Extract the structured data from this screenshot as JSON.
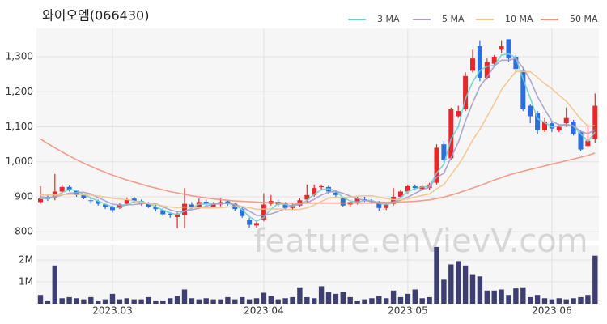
{
  "chart_data": {
    "type": "candlestick",
    "title": "와이오엠(066430)",
    "watermark": "feature.enVievV.com",
    "categories": [
      null,
      null,
      null,
      null,
      null,
      null,
      null,
      null,
      null,
      null,
      "2023.03",
      null,
      null,
      null,
      null,
      null,
      null,
      null,
      null,
      null,
      null,
      null,
      null,
      null,
      null,
      null,
      null,
      null,
      null,
      null,
      null,
      "2023.04",
      null,
      null,
      null,
      null,
      null,
      null,
      null,
      null,
      null,
      null,
      null,
      null,
      null,
      null,
      null,
      null,
      null,
      null,
      null,
      "2023.05",
      null,
      null,
      null,
      null,
      null,
      null,
      null,
      null,
      null,
      null,
      null,
      null,
      null,
      null,
      null,
      null,
      null,
      null,
      null,
      "2023.06",
      null,
      null,
      null,
      null,
      null,
      null
    ],
    "open": [
      885,
      900,
      898,
      915,
      928,
      918,
      905,
      890,
      888,
      878,
      872,
      868,
      880,
      895,
      888,
      880,
      872,
      862,
      852,
      842,
      848,
      878,
      870,
      886,
      872,
      878,
      887,
      880,
      865,
      835,
      818,
      835,
      880,
      886,
      880,
      868,
      875,
      892,
      905,
      928,
      928,
      912,
      895,
      878,
      883,
      893,
      888,
      882,
      868,
      880,
      900,
      915,
      930,
      922,
      925,
      940,
      1050,
      1010,
      1130,
      1150,
      1260,
      1330,
      1240,
      1280,
      1320,
      1350,
      1300,
      1260,
      1160,
      1140,
      1090,
      1110,
      1090,
      1110,
      1115,
      1085,
      1045,
      1065
    ],
    "high": [
      930,
      905,
      965,
      935,
      932,
      920,
      908,
      895,
      892,
      880,
      875,
      882,
      898,
      900,
      892,
      885,
      878,
      868,
      856,
      855,
      925,
      885,
      895,
      892,
      885,
      895,
      892,
      883,
      870,
      840,
      835,
      910,
      905,
      892,
      885,
      880,
      895,
      935,
      935,
      935,
      932,
      918,
      900,
      890,
      900,
      900,
      893,
      888,
      885,
      925,
      920,
      935,
      935,
      935,
      940,
      1050,
      1060,
      1155,
      1160,
      1255,
      1320,
      1345,
      1295,
      1305,
      1345,
      1350,
      1305,
      1265,
      1165,
      1145,
      1125,
      1115,
      1105,
      1155,
      1120,
      1090,
      1100,
      1195
    ],
    "low": [
      880,
      888,
      890,
      910,
      915,
      900,
      893,
      880,
      875,
      865,
      855,
      865,
      875,
      883,
      875,
      868,
      858,
      845,
      840,
      810,
      810,
      865,
      865,
      875,
      868,
      873,
      875,
      860,
      840,
      812,
      812,
      830,
      875,
      870,
      862,
      862,
      870,
      885,
      900,
      920,
      908,
      898,
      870,
      870,
      878,
      885,
      880,
      860,
      862,
      875,
      895,
      910,
      918,
      918,
      920,
      935,
      1000,
      1005,
      1125,
      1145,
      1255,
      1230,
      1235,
      1270,
      1310,
      1285,
      1255,
      1145,
      1110,
      1080,
      1085,
      1085,
      1085,
      1100,
      1075,
      1030,
      1040,
      1055
    ],
    "close": [
      895,
      893,
      915,
      928,
      920,
      905,
      897,
      888,
      880,
      870,
      862,
      878,
      893,
      888,
      880,
      872,
      865,
      850,
      848,
      850,
      880,
      872,
      885,
      880,
      878,
      885,
      880,
      865,
      845,
      820,
      825,
      878,
      888,
      878,
      868,
      875,
      890,
      905,
      925,
      930,
      915,
      905,
      875,
      885,
      895,
      890,
      885,
      868,
      880,
      900,
      915,
      930,
      925,
      930,
      935,
      1040,
      1005,
      1150,
      1145,
      1245,
      1295,
      1240,
      1285,
      1300,
      1330,
      1295,
      1265,
      1150,
      1130,
      1090,
      1115,
      1095,
      1100,
      1125,
      1080,
      1035,
      1060,
      1160
    ],
    "up_color": "#e8262c",
    "down_color": "#2a6fdb",
    "ylim": [
      775,
      1381
    ],
    "yticks": [
      800,
      900,
      {
        "value": 1000,
        "label": "1,000"
      },
      {
        "value": 1100,
        "label": "1,100"
      },
      {
        "value": 1200,
        "label": "1,200"
      },
      {
        "value": 1300,
        "label": "1,300"
      }
    ],
    "grid": true,
    "legend": "top-right",
    "series": [
      {
        "name": "3 MA",
        "color": "#6fd0d0",
        "values": [
          895,
          894,
          901,
          912,
          921,
          918,
          907,
          897,
          888,
          879,
          871,
          870,
          878,
          886,
          887,
          880,
          872,
          862,
          854,
          849,
          859,
          867,
          879,
          879,
          881,
          881,
          881,
          877,
          863,
          843,
          830,
          841,
          864,
          881,
          878,
          874,
          878,
          890,
          907,
          920,
          923,
          917,
          898,
          888,
          885,
          890,
          890,
          881,
          878,
          883,
          898,
          915,
          923,
          928,
          930,
          968,
          993,
          1065,
          1100,
          1180,
          1228,
          1260,
          1273,
          1275,
          1305,
          1308,
          1297,
          1237,
          1182,
          1123,
          1112,
          1100,
          1103,
          1107,
          1102,
          1080,
          1058,
          1085
        ]
      },
      {
        "name": "5 MA",
        "color": "#a99cc9",
        "values": [
          900,
          898,
          900,
          905,
          910,
          912,
          913,
          908,
          898,
          888,
          879,
          876,
          877,
          878,
          880,
          882,
          880,
          871,
          863,
          857,
          859,
          863,
          867,
          873,
          879,
          880,
          882,
          878,
          871,
          859,
          847,
          847,
          851,
          858,
          867,
          877,
          880,
          883,
          893,
          905,
          913,
          916,
          910,
          902,
          895,
          890,
          886,
          885,
          884,
          885,
          890,
          899,
          910,
          920,
          927,
          956,
          967,
          1012,
          1055,
          1117,
          1168,
          1215,
          1242,
          1273,
          1290,
          1290,
          1295,
          1268,
          1234,
          1186,
          1150,
          1116,
          1106,
          1105,
          1103,
          1087,
          1080,
          1092
        ]
      },
      {
        "name": "10 MA",
        "color": "#f3c48f",
        "values": [
          905,
          905,
          905,
          906,
          907,
          907,
          906,
          905,
          902,
          899,
          896,
          894,
          892,
          888,
          884,
          881,
          878,
          874,
          871,
          869,
          871,
          870,
          869,
          868,
          868,
          869,
          871,
          872,
          872,
          869,
          864,
          865,
          865,
          865,
          864,
          863,
          864,
          868,
          876,
          887,
          896,
          899,
          898,
          899,
          902,
          903,
          903,
          899,
          895,
          892,
          892,
          894,
          899,
          904,
          908,
          923,
          935,
          963,
          990,
          1024,
          1062,
          1093,
          1129,
          1166,
          1206,
          1232,
          1258,
          1258,
          1257,
          1241,
          1223,
          1209,
          1190,
          1173,
          1148,
          1122,
          1102,
          1103
        ]
      },
      {
        "name": "50 MA",
        "color": "#f2927e",
        "values": [
          1065,
          1052,
          1040,
          1028,
          1017,
          1006,
          996,
          987,
          978,
          970,
          962,
          955,
          948,
          942,
          936,
          930,
          925,
          920,
          915,
          911,
          907,
          903,
          900,
          897,
          894,
          892,
          890,
          888,
          887,
          886,
          885,
          884,
          883,
          883,
          882,
          882,
          882,
          882,
          882,
          882,
          882,
          882,
          882,
          882,
          882,
          882,
          882,
          882,
          883,
          884,
          885,
          886,
          887,
          889,
          891,
          895,
          899,
          905,
          911,
          918,
          925,
          932,
          940,
          948,
          955,
          962,
          968,
          973,
          978,
          983,
          988,
          993,
          998,
          1003,
          1008,
          1013,
          1018,
          1025
        ]
      }
    ],
    "volume": {
      "color": "#3e3f70",
      "values": [
        400000,
        150000,
        1750000,
        250000,
        300000,
        250000,
        200000,
        300000,
        150000,
        200000,
        450000,
        200000,
        250000,
        200000,
        200000,
        300000,
        150000,
        150000,
        250000,
        350000,
        650000,
        250000,
        200000,
        250000,
        200000,
        200000,
        300000,
        200000,
        300000,
        200000,
        250000,
        500000,
        350000,
        200000,
        250000,
        300000,
        750000,
        300000,
        250000,
        800000,
        550000,
        450000,
        550000,
        300000,
        150000,
        200000,
        250000,
        350000,
        250000,
        600000,
        300000,
        450000,
        650000,
        250000,
        300000,
        2600000,
        1100000,
        1800000,
        1950000,
        1750000,
        1350000,
        1250000,
        600000,
        600000,
        650000,
        400000,
        700000,
        750000,
        300000,
        400000,
        250000,
        200000,
        250000,
        200000,
        250000,
        300000,
        400000,
        2200000
      ],
      "ylim": [
        0,
        2670000
      ],
      "yticks": [
        {
          "value": 1000000,
          "label": "1M"
        },
        {
          "value": 2000000,
          "label": "2M"
        }
      ]
    }
  }
}
